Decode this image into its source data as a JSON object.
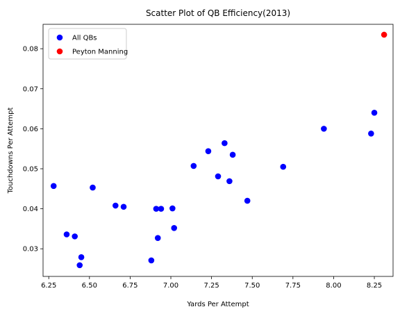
{
  "chart_data": {
    "type": "scatter",
    "title": "Scatter Plot of QB Efficiency(2013)",
    "xlabel": "Yards Per Attempt",
    "ylabel": "Touchdowns Per Attempt",
    "xlim": [
      6.215,
      8.365
    ],
    "ylim": [
      0.0231,
      0.0861
    ],
    "xticks": [
      6.25,
      6.5,
      6.75,
      7.0,
      7.25,
      7.5,
      7.75,
      8.0,
      8.25
    ],
    "xtick_labels": [
      "6.25",
      "6.50",
      "6.75",
      "7.00",
      "7.25",
      "7.50",
      "7.75",
      "8.00",
      "8.25"
    ],
    "yticks": [
      0.03,
      0.04,
      0.05,
      0.06,
      0.07,
      0.08
    ],
    "ytick_labels": [
      "0.03",
      "0.04",
      "0.05",
      "0.06",
      "0.07",
      "0.08"
    ],
    "grid": false,
    "legend": "top-left",
    "series": [
      {
        "name": "All QBs",
        "color": "#0000ff",
        "points": [
          [
            6.28,
            0.0457
          ],
          [
            6.36,
            0.0336
          ],
          [
            6.41,
            0.0331
          ],
          [
            6.44,
            0.0259
          ],
          [
            6.45,
            0.0279
          ],
          [
            6.52,
            0.0453
          ],
          [
            6.66,
            0.0408
          ],
          [
            6.71,
            0.0405
          ],
          [
            6.88,
            0.0271
          ],
          [
            6.91,
            0.04
          ],
          [
            6.92,
            0.0327
          ],
          [
            6.94,
            0.04
          ],
          [
            7.01,
            0.0401
          ],
          [
            7.02,
            0.0352
          ],
          [
            7.14,
            0.0507
          ],
          [
            7.23,
            0.0544
          ],
          [
            7.29,
            0.0481
          ],
          [
            7.33,
            0.0564
          ],
          [
            7.36,
            0.0469
          ],
          [
            7.38,
            0.0535
          ],
          [
            7.47,
            0.042
          ],
          [
            7.69,
            0.0505
          ],
          [
            7.94,
            0.06
          ],
          [
            8.23,
            0.0588
          ],
          [
            8.25,
            0.064
          ]
        ]
      },
      {
        "name": "Peyton Manning",
        "color": "#ff0000",
        "points": [
          [
            8.31,
            0.0835
          ]
        ]
      }
    ]
  }
}
